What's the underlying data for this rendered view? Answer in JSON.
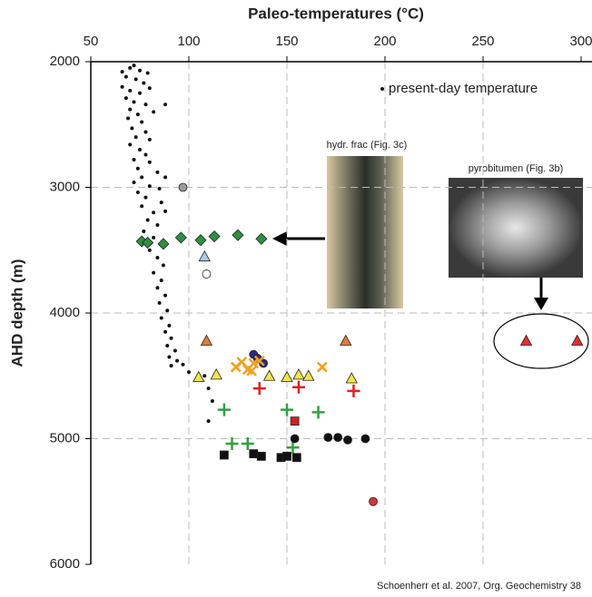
{
  "chart_data": {
    "type": "scatter",
    "title": "Paleo-temperatures (°C)",
    "y_label": "AHD depth (m)",
    "xlim": [
      50,
      300
    ],
    "xticks": [
      50,
      100,
      150,
      200,
      250,
      300
    ],
    "ylim": [
      2000,
      6000
    ],
    "yticks": [
      2000,
      3000,
      4000,
      5000,
      6000
    ],
    "y_inverted": true,
    "grid": true,
    "legend_position": "top-right",
    "annotations": [
      "hydr. frac (Fig. 3c)",
      "pyrobitumen (Fig. 3b)",
      "Schoenherr et al. 2007, Org. Geochemistry 38"
    ],
    "series": [
      {
        "name": "present-day temperature",
        "marker": "dot",
        "color": "#111111",
        "x": [
          70,
          72,
          66,
          75,
          79,
          68,
          73,
          77,
          66,
          70,
          75,
          80,
          68,
          72,
          78,
          70,
          74,
          82,
          88,
          69,
          76,
          71,
          78,
          73,
          80,
          70,
          75,
          78,
          72,
          80,
          74,
          84,
          76,
          72,
          80,
          85,
          74,
          78,
          86,
          76,
          82,
          88,
          79,
          84,
          77,
          82,
          86,
          80,
          84,
          87,
          82,
          86,
          84,
          88,
          85,
          89,
          86,
          90,
          88,
          91,
          89,
          93,
          90,
          94,
          91,
          97,
          100,
          108,
          110,
          112,
          110,
          88
        ],
        "y": [
          2050,
          2030,
          2080,
          2070,
          2090,
          2120,
          2140,
          2170,
          2200,
          2230,
          2250,
          2210,
          2290,
          2320,
          2340,
          2380,
          2420,
          2400,
          2340,
          2450,
          2480,
          2530,
          2560,
          2600,
          2620,
          2660,
          2700,
          2740,
          2780,
          2800,
          2850,
          2880,
          2920,
          2960,
          2990,
          3010,
          3040,
          3080,
          3120,
          3150,
          3200,
          3190,
          3260,
          3300,
          3350,
          3400,
          3460,
          3500,
          3560,
          3620,
          3680,
          3740,
          3800,
          3860,
          3920,
          3980,
          4040,
          4100,
          4150,
          4200,
          4260,
          4300,
          4350,
          4380,
          4420,
          4410,
          4470,
          4500,
          4600,
          4700,
          4860,
          2920
        ]
      },
      {
        "marker": "circle",
        "color": "#9a9a9a",
        "x": [
          97
        ],
        "y": [
          3000
        ]
      },
      {
        "marker": "diamond",
        "color": "#2f8f3f",
        "x": [
          76,
          79,
          87,
          96,
          106,
          113,
          125,
          137
        ],
        "y": [
          3430,
          3440,
          3450,
          3400,
          3420,
          3390,
          3380,
          3410
        ]
      },
      {
        "marker": "triangle",
        "color": "#a8cce4",
        "x": [
          108
        ],
        "y": [
          3550
        ]
      },
      {
        "marker": "circle",
        "color": "#ffffff",
        "x": [
          109
        ],
        "y": [
          3690
        ]
      },
      {
        "marker": "triangle",
        "color": "#e07a3a",
        "x": [
          109,
          180
        ],
        "y": [
          4220,
          4220
        ]
      },
      {
        "marker": "triangle",
        "color": "#f2e64a",
        "x": [
          105,
          114,
          141,
          150,
          156,
          161,
          183
        ],
        "y": [
          4510,
          4490,
          4500,
          4510,
          4490,
          4500,
          4520
        ]
      },
      {
        "marker": "circle",
        "color": "#2a2a80",
        "x": [
          133,
          135,
          138
        ],
        "y": [
          4330,
          4360,
          4400
        ]
      },
      {
        "marker": "cross",
        "color": "#f0a020",
        "x": [
          124,
          127,
          130,
          133,
          132,
          136,
          168
        ],
        "y": [
          4430,
          4390,
          4450,
          4400,
          4460,
          4380,
          4430
        ]
      },
      {
        "marker": "plus",
        "color": "#e02020",
        "x": [
          136,
          156,
          184
        ],
        "y": [
          4600,
          4590,
          4620
        ]
      },
      {
        "marker": "plus",
        "color": "#30a040",
        "x": [
          118,
          150,
          166,
          122,
          130,
          153
        ],
        "y": [
          4770,
          4770,
          4790,
          5040,
          5040,
          5070
        ]
      },
      {
        "marker": "square",
        "color": "#d02020",
        "x": [
          154
        ],
        "y": [
          4860
        ]
      },
      {
        "marker": "circle",
        "color": "#111111",
        "x": [
          154,
          171,
          176,
          181,
          190
        ],
        "y": [
          5000,
          4990,
          4990,
          5010,
          5000
        ]
      },
      {
        "marker": "square",
        "color": "#111111",
        "x": [
          118,
          133,
          137,
          147,
          150,
          155
        ],
        "y": [
          5130,
          5120,
          5140,
          5150,
          5140,
          5150
        ]
      },
      {
        "marker": "circle",
        "color": "#e03030",
        "x": [
          194
        ],
        "y": [
          5500
        ]
      },
      {
        "marker": "triangle",
        "color": "#e03030",
        "x": [
          272,
          298
        ],
        "y": [
          4220,
          4220
        ]
      }
    ]
  }
}
